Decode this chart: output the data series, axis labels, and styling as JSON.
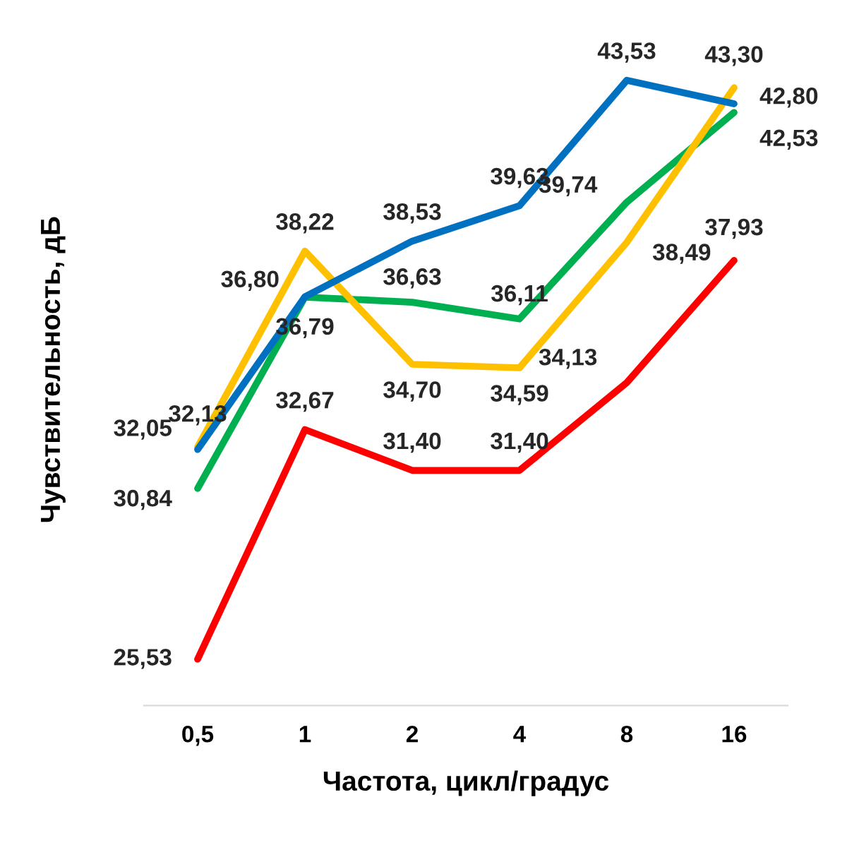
{
  "chart_data": {
    "type": "line",
    "xlabel": "Частота, цикл/градус",
    "ylabel": "Чувствительность, дБ",
    "categories": [
      "0,5",
      "1",
      "2",
      "4",
      "8",
      "16"
    ],
    "series": [
      {
        "color": "#ff0000",
        "values": [
          25.53,
          32.67,
          31.4,
          31.4,
          34.13,
          37.93
        ],
        "value_labels": [
          "25,53",
          "32,67",
          "31,40",
          "31,40",
          "34,13",
          "37,93"
        ]
      },
      {
        "color": "#00b050",
        "values": [
          30.84,
          36.79,
          36.63,
          36.11,
          39.74,
          42.53
        ],
        "value_labels": [
          "30,84",
          "36,79",
          "36,63",
          "36,11",
          "39,74",
          "42,53"
        ]
      },
      {
        "color": "#ffc000",
        "values": [
          32.13,
          38.22,
          34.7,
          34.59,
          38.49,
          43.3
        ],
        "value_labels": [
          "32,13",
          "38,22",
          "34,70",
          "34,59",
          "38,49",
          "43,30"
        ]
      },
      {
        "color": "#0070c0",
        "values": [
          32.05,
          36.8,
          38.53,
          39.63,
          43.53,
          42.8
        ],
        "value_labels": [
          "32,05",
          "36,80",
          "38,53",
          "39,63",
          "43,53",
          "42,80"
        ]
      }
    ],
    "tick_labels": "x",
    "grid": false,
    "legend": false,
    "marker": "none",
    "line_style": "solid"
  }
}
